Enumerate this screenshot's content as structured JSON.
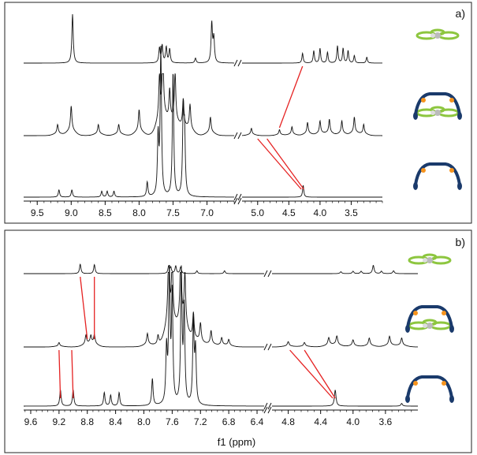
{
  "chart_data": [
    {
      "type": "line",
      "panel_label": "a)",
      "xlabel": "",
      "x_axis_reversed": true,
      "broken_axis": true,
      "segments": [
        {
          "xlim": [
            9.7,
            6.6
          ],
          "ticks": [
            "9.5",
            "9.0",
            "8.5",
            "8.0",
            "7.5",
            "7.0"
          ],
          "tick_values": [
            9.5,
            9.0,
            8.5,
            8.0,
            7.5,
            7.0
          ]
        },
        {
          "xlim": [
            5.25,
            3.0
          ],
          "ticks": [
            "5.0",
            "4.5",
            "4.0",
            "3.5"
          ],
          "tick_values": [
            5.0,
            4.5,
            4.0,
            3.5
          ]
        }
      ],
      "series": [
        {
          "peaks": [
            [
              8.98,
              1.0
            ],
            [
              7.7,
              0.3
            ],
            [
              7.66,
              0.35
            ],
            [
              7.6,
              0.32
            ],
            [
              7.55,
              0.28
            ],
            [
              7.17,
              0.1
            ],
            [
              6.93,
              0.8
            ],
            [
              6.9,
              0.5
            ],
            [
              4.28,
              0.2
            ],
            [
              4.1,
              0.25
            ],
            [
              4.0,
              0.3
            ],
            [
              3.88,
              0.22
            ],
            [
              3.72,
              0.35
            ],
            [
              3.63,
              0.3
            ],
            [
              3.55,
              0.25
            ],
            [
              3.45,
              0.15
            ],
            [
              3.25,
              0.12
            ]
          ]
        },
        {
          "peaks": [
            [
              9.2,
              0.15
            ],
            [
              9.0,
              0.4
            ],
            [
              8.6,
              0.15
            ],
            [
              8.3,
              0.15
            ],
            [
              8.0,
              0.35
            ],
            [
              7.7,
              0.65
            ],
            [
              7.65,
              1.0
            ],
            [
              7.55,
              0.5
            ],
            [
              7.47,
              0.8
            ],
            [
              7.35,
              0.45
            ],
            [
              7.25,
              0.4
            ],
            [
              6.95,
              0.25
            ],
            [
              5.1,
              0.1
            ],
            [
              4.65,
              0.08
            ],
            [
              4.45,
              0.12
            ],
            [
              4.2,
              0.18
            ],
            [
              4.0,
              0.2
            ],
            [
              3.85,
              0.22
            ],
            [
              3.65,
              0.2
            ],
            [
              3.45,
              0.25
            ],
            [
              3.3,
              0.15
            ]
          ]
        },
        {
          "peaks": [
            [
              9.18,
              0.05
            ],
            [
              8.99,
              0.05
            ],
            [
              8.55,
              0.04
            ],
            [
              8.47,
              0.04
            ],
            [
              8.37,
              0.04
            ],
            [
              7.88,
              0.1
            ],
            [
              7.72,
              0.4
            ],
            [
              7.68,
              1.0
            ],
            [
              7.5,
              0.85
            ],
            [
              7.35,
              0.55
            ],
            [
              7.33,
              0.4
            ],
            [
              4.27,
              0.08
            ]
          ]
        }
      ]
    },
    {
      "type": "line",
      "panel_label": "b)",
      "xlabel": "f1 (ppm)",
      "x_axis_reversed": true,
      "broken_axis": true,
      "segments": [
        {
          "xlim": [
            9.7,
            6.3
          ],
          "ticks": [
            "9.6",
            "9.2",
            "8.8",
            "8.4",
            "8.0",
            "7.6",
            "7.2",
            "6.8",
            "6.4"
          ],
          "tick_values": [
            9.6,
            9.2,
            8.8,
            8.4,
            8.0,
            7.6,
            7.2,
            6.8,
            6.4
          ]
        },
        {
          "xlim": [
            5.0,
            3.2
          ],
          "ticks": [
            "4.8",
            "4.4",
            "4.0",
            "3.6"
          ],
          "tick_values": [
            4.8,
            4.4,
            4.0,
            3.6
          ]
        }
      ],
      "series": [
        {
          "peaks": [
            [
              8.9,
              0.4
            ],
            [
              8.7,
              0.38
            ],
            [
              7.65,
              0.3
            ],
            [
              7.62,
              0.25
            ],
            [
              7.55,
              0.32
            ],
            [
              7.48,
              0.28
            ],
            [
              7.25,
              0.12
            ],
            [
              6.86,
              0.12
            ],
            [
              4.15,
              0.08
            ],
            [
              4.0,
              0.1
            ],
            [
              3.9,
              0.1
            ],
            [
              3.75,
              0.35
            ],
            [
              3.65,
              0.1
            ],
            [
              3.5,
              0.12
            ]
          ]
        },
        {
          "peaks": [
            [
              9.2,
              0.05
            ],
            [
              8.82,
              0.12
            ],
            [
              8.75,
              0.1
            ],
            [
              8.7,
              0.12
            ],
            [
              7.95,
              0.15
            ],
            [
              7.8,
              0.12
            ],
            [
              7.65,
              1.0
            ],
            [
              7.6,
              0.8
            ],
            [
              7.48,
              0.95
            ],
            [
              7.42,
              0.7
            ],
            [
              7.3,
              0.35
            ],
            [
              7.2,
              0.25
            ],
            [
              7.05,
              0.18
            ],
            [
              6.9,
              0.1
            ],
            [
              6.8,
              0.08
            ],
            [
              4.8,
              0.06
            ],
            [
              4.6,
              0.05
            ],
            [
              4.3,
              0.1
            ],
            [
              4.2,
              0.12
            ],
            [
              4.0,
              0.08
            ],
            [
              3.8,
              0.1
            ],
            [
              3.55,
              0.12
            ],
            [
              3.4,
              0.1
            ]
          ]
        },
        {
          "peaks": [
            [
              9.18,
              0.12
            ],
            [
              9.0,
              0.12
            ],
            [
              8.56,
              0.1
            ],
            [
              8.47,
              0.08
            ],
            [
              8.35,
              0.1
            ],
            [
              7.88,
              0.2
            ],
            [
              7.68,
              0.4
            ],
            [
              7.64,
              1.0
            ],
            [
              7.6,
              0.8
            ],
            [
              7.47,
              0.98
            ],
            [
              7.43,
              0.7
            ],
            [
              7.3,
              0.6
            ],
            [
              7.27,
              0.4
            ],
            [
              4.22,
              0.12
            ],
            [
              3.4,
              0.02
            ]
          ]
        }
      ]
    }
  ]
}
